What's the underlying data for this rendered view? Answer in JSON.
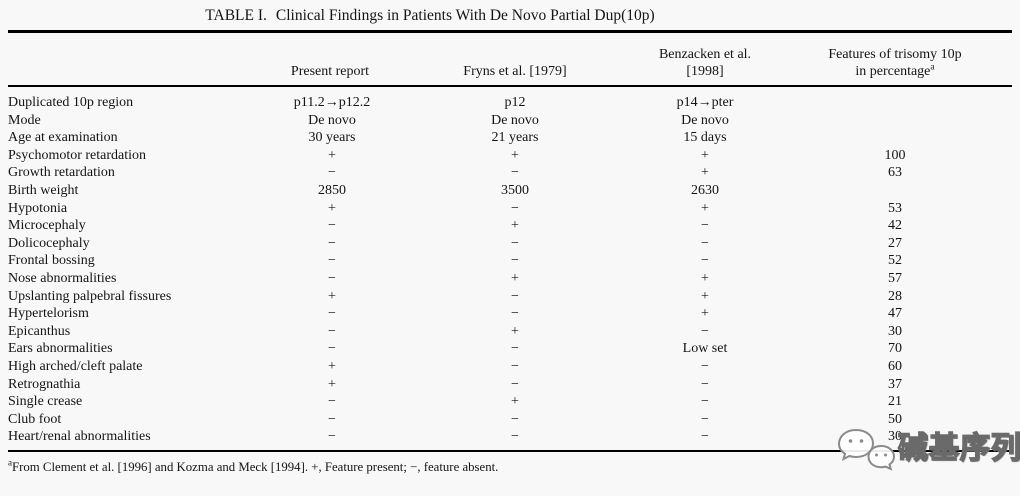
{
  "title": {
    "label": "TABLE I.",
    "text": "Clinical Findings in Patients With De Novo Partial Dup(10p)"
  },
  "table": {
    "columns": {
      "feature": "",
      "present": "Present report",
      "fryns": "Fryns et al. [1979]",
      "benzacken_line1": "Benzacken et al.",
      "benzacken_line2": "[1998]",
      "features_line1": "Features of trisomy 10p",
      "features_line2": "in percentage",
      "features_sup": "a"
    },
    "rows": [
      {
        "feature": "Duplicated 10p region",
        "present": "p11.2→p12.2",
        "fryns": "p12",
        "benzacken": "p14→pter",
        "pct": ""
      },
      {
        "feature": "Mode",
        "present": "De novo",
        "fryns": "De novo",
        "benzacken": "De novo",
        "pct": ""
      },
      {
        "feature": "Age at examination",
        "present": "30 years",
        "fryns": "21 years",
        "benzacken": "15 days",
        "pct": ""
      },
      {
        "feature": "Psychomotor retardation",
        "present": "+",
        "fryns": "+",
        "benzacken": "+",
        "pct": "100"
      },
      {
        "feature": "Growth retardation",
        "present": "−",
        "fryns": "−",
        "benzacken": "+",
        "pct": "63"
      },
      {
        "feature": "Birth weight",
        "present": "2850",
        "fryns": "3500",
        "benzacken": "2630",
        "pct": ""
      },
      {
        "feature": "Hypotonia",
        "present": "+",
        "fryns": "−",
        "benzacken": "+",
        "pct": "53"
      },
      {
        "feature": "Microcephaly",
        "present": "−",
        "fryns": "+",
        "benzacken": "−",
        "pct": "42"
      },
      {
        "feature": "Dolicocephaly",
        "present": "−",
        "fryns": "−",
        "benzacken": "−",
        "pct": "27"
      },
      {
        "feature": "Frontal bossing",
        "present": "−",
        "fryns": "−",
        "benzacken": "−",
        "pct": "52"
      },
      {
        "feature": "Nose abnormalities",
        "present": "−",
        "fryns": "+",
        "benzacken": "+",
        "pct": "57"
      },
      {
        "feature": "Upslanting palpebral fissures",
        "present": "+",
        "fryns": "−",
        "benzacken": "+",
        "pct": "28"
      },
      {
        "feature": "Hypertelorism",
        "present": "−",
        "fryns": "−",
        "benzacken": "+",
        "pct": "47"
      },
      {
        "feature": "Epicanthus",
        "present": "−",
        "fryns": "+",
        "benzacken": "−",
        "pct": "30"
      },
      {
        "feature": "Ears abnormalities",
        "present": "−",
        "fryns": "−",
        "benzacken": "Low set",
        "pct": "70"
      },
      {
        "feature": "High arched/cleft palate",
        "present": "+",
        "fryns": "−",
        "benzacken": "−",
        "pct": "60"
      },
      {
        "feature": "Retrognathia",
        "present": "+",
        "fryns": "−",
        "benzacken": "−",
        "pct": "37"
      },
      {
        "feature": "Single crease",
        "present": "−",
        "fryns": "+",
        "benzacken": "−",
        "pct": "21"
      },
      {
        "feature": "Club foot",
        "present": "−",
        "fryns": "−",
        "benzacken": "−",
        "pct": "50"
      },
      {
        "feature": "Heart/renal abnormalities",
        "present": "−",
        "fryns": "−",
        "benzacken": "−",
        "pct": "30"
      }
    ]
  },
  "footnote": {
    "marker": "a",
    "text": "From Clement et al. [1996] and Kozma and Meck [1994]. +, Feature present; −, feature absent."
  },
  "watermark": {
    "text": "碱基序列",
    "icon": "wechat-bubbles-icon"
  },
  "colors": {
    "background": "#f8f8f8",
    "text": "#141414",
    "rule": "#000000",
    "watermark_fill": "#ffffff",
    "watermark_outline": "#6a6a6a"
  }
}
